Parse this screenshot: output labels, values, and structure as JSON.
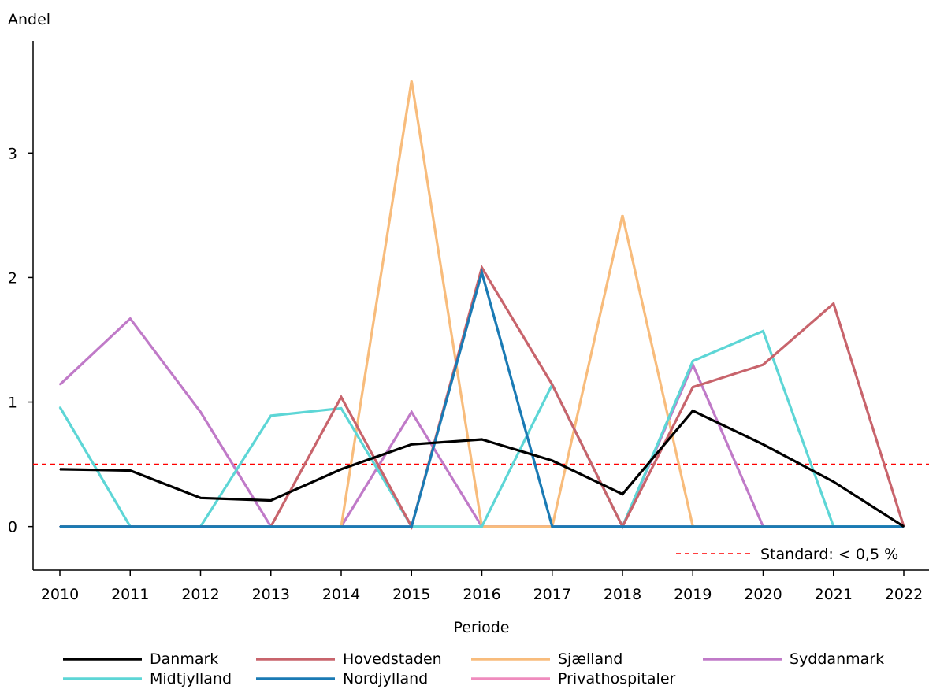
{
  "chart_data": {
    "type": "line",
    "title": "",
    "xlabel": "Periode",
    "ylabel": "Andel",
    "x": [
      2010,
      2011,
      2012,
      2013,
      2014,
      2015,
      2016,
      2017,
      2018,
      2019,
      2020,
      2021,
      2022
    ],
    "x_ticks": [
      "2010",
      "2011",
      "2012",
      "2013",
      "2014",
      "2015",
      "2016",
      "2017",
      "2018",
      "2019",
      "2020",
      "2021",
      "2022"
    ],
    "y_ticks": [
      "0",
      "1",
      "2",
      "3"
    ],
    "ylim": [
      -0.35,
      3.9
    ],
    "grid": false,
    "legend_position": "bottom",
    "series": [
      {
        "name": "Privathospitaler",
        "color": "#f08cbe",
        "values": [
          0,
          0,
          0,
          0,
          0,
          0,
          0,
          0,
          0,
          0,
          0,
          0,
          0
        ]
      },
      {
        "name": "Syddanmark",
        "color": "#c07ac8",
        "values": [
          1.14,
          1.67,
          0.92,
          0,
          0,
          0.92,
          0,
          0,
          0,
          1.3,
          0,
          0,
          0
        ]
      },
      {
        "name": "Sjælland",
        "color": "#f8bc7c",
        "values": [
          0,
          0,
          0,
          0,
          0,
          3.58,
          0,
          0,
          2.5,
          0,
          0,
          0,
          0
        ]
      },
      {
        "name": "Midtjylland",
        "color": "#5dd6d6",
        "values": [
          0.96,
          0,
          0,
          0.89,
          0.95,
          0,
          0,
          1.14,
          0,
          1.33,
          1.57,
          0,
          0
        ]
      },
      {
        "name": "Hovedstaden",
        "color": "#c8646c",
        "values": [
          0,
          0,
          0,
          0,
          1.04,
          0,
          2.08,
          1.14,
          0,
          1.12,
          1.3,
          1.79,
          0
        ]
      },
      {
        "name": "Nordjylland",
        "color": "#1a7ab4",
        "values": [
          0,
          0,
          0,
          0,
          0,
          0,
          2.04,
          0,
          0,
          0,
          0,
          0,
          0
        ]
      },
      {
        "name": "Danmark",
        "color": "#000000",
        "values": [
          0.46,
          0.45,
          0.23,
          0.21,
          0.46,
          0.66,
          0.7,
          0.53,
          0.26,
          0.93,
          0.66,
          0.36,
          0
        ]
      }
    ],
    "legend_order": [
      "Danmark",
      "Hovedstaden",
      "Sjælland",
      "Syddanmark",
      "Midtjylland",
      "Nordjylland",
      "Privathospitaler"
    ],
    "reference_line": {
      "label": "Standard: < 0,5 %",
      "value": 0.5,
      "color": "#ff0000"
    }
  }
}
